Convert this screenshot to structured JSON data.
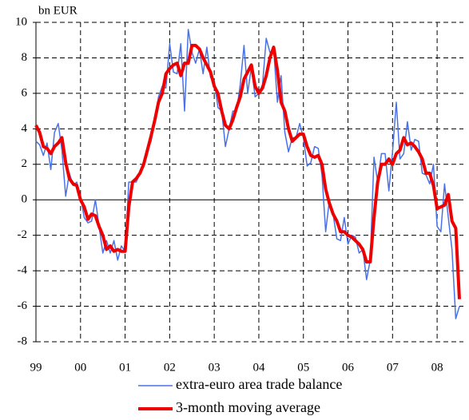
{
  "chart_data": {
    "type": "line",
    "y_axis_label": "bn EUR",
    "categories": [
      "99",
      null,
      null,
      null,
      null,
      null,
      null,
      null,
      null,
      null,
      null,
      null,
      "00",
      null,
      null,
      null,
      null,
      null,
      null,
      null,
      null,
      null,
      null,
      null,
      "01",
      null,
      null,
      null,
      null,
      null,
      null,
      null,
      null,
      null,
      null,
      null,
      "02",
      null,
      null,
      null,
      null,
      null,
      null,
      null,
      null,
      null,
      null,
      null,
      "03",
      null,
      null,
      null,
      null,
      null,
      null,
      null,
      null,
      null,
      null,
      null,
      "04",
      null,
      null,
      null,
      null,
      null,
      null,
      null,
      null,
      null,
      null,
      null,
      "05",
      null,
      null,
      null,
      null,
      null,
      null,
      null,
      null,
      null,
      null,
      null,
      "06",
      null,
      null,
      null,
      null,
      null,
      null,
      null,
      null,
      null,
      null,
      null,
      "07",
      null,
      null,
      null,
      null,
      null,
      null,
      null,
      null,
      null,
      null,
      null,
      "08",
      null,
      null,
      null,
      null,
      null,
      null
    ],
    "series": [
      {
        "name": "extra-euro area trade balance",
        "color": "#4a72e8",
        "width": 1.5,
        "values": [
          3.3,
          3.1,
          2.5,
          3.2,
          1.7,
          3.8,
          4.3,
          2.8,
          0.2,
          1.5,
          0.8,
          1.0,
          0.2,
          -1.0,
          -1.3,
          -1.2,
          0.0,
          -1.5,
          -3.0,
          -2.3,
          -3.0,
          -2.3,
          -3.4,
          -2.6,
          -2.9,
          1.0,
          1.0,
          1.0,
          1.5,
          2.0,
          2.8,
          3.3,
          4.5,
          5.8,
          6.4,
          6.3,
          8.8,
          7.2,
          7.1,
          8.8,
          5.0,
          9.6,
          8.3,
          7.7,
          8.5,
          7.1,
          8.6,
          6.9,
          6.7,
          5.2,
          5.0,
          3.0,
          4.0,
          5.0,
          5.0,
          6.5,
          8.7,
          6.0,
          7.5,
          5.8,
          6.0,
          6.5,
          9.1,
          8.3,
          8.5,
          5.5,
          7.0,
          3.8,
          2.7,
          3.5,
          3.5,
          4.3,
          3.5,
          1.9,
          2.1,
          3.0,
          2.9,
          1.4,
          -1.8,
          0.0,
          -0.8,
          -2.2,
          -2.3,
          -1.0,
          -2.5,
          -2.0,
          -2.1,
          -3.0,
          -2.8,
          -4.5,
          -3.4,
          2.4,
          1.0,
          2.6,
          2.6,
          0.5,
          2.7,
          5.5,
          2.3,
          2.6,
          4.4,
          2.8,
          3.4,
          3.3,
          1.5,
          1.4,
          0.9,
          2.0,
          -1.5,
          -1.8,
          0.9,
          -1.0,
          -2.8,
          -6.7,
          -6.0
        ]
      },
      {
        "name": "3-month moving average",
        "color": "#ee0000",
        "width": 4,
        "values": [
          4.2,
          3.8,
          3.0,
          2.9,
          2.6,
          3.0,
          3.2,
          3.5,
          2.1,
          1.2,
          0.9,
          0.8,
          0.0,
          -0.4,
          -1.1,
          -0.8,
          -0.9,
          -1.5,
          -2.0,
          -2.8,
          -2.6,
          -2.9,
          -2.8,
          -2.9,
          -2.9,
          -0.4,
          1.0,
          1.2,
          1.5,
          2.0,
          2.8,
          3.6,
          4.5,
          5.5,
          6.0,
          7.1,
          7.4,
          7.6,
          7.7,
          7.0,
          7.7,
          7.7,
          8.7,
          8.7,
          8.5,
          8.0,
          7.6,
          7.2,
          6.4,
          6.0,
          5.0,
          4.2,
          4.0,
          4.5,
          5.2,
          5.8,
          6.8,
          7.2,
          7.6,
          6.4,
          6.0,
          6.3,
          7.0,
          8.0,
          8.6,
          7.3,
          5.5,
          5.0,
          4.0,
          3.3,
          3.5,
          3.7,
          3.7,
          3.0,
          2.5,
          2.4,
          2.5,
          2.0,
          0.6,
          -0.2,
          -0.8,
          -1.2,
          -1.8,
          -1.8,
          -2.0,
          -2.1,
          -2.3,
          -2.5,
          -2.8,
          -3.5,
          -3.5,
          -1.0,
          1.0,
          2.0,
          2.0,
          2.3,
          2.0,
          2.6,
          2.8,
          3.5,
          3.1,
          3.2,
          3.0,
          2.7,
          2.3,
          1.5,
          1.5,
          0.8,
          -0.5,
          -0.4,
          -0.3,
          0.3,
          -1.2,
          -1.6,
          -5.6
        ]
      }
    ],
    "ylim": [
      -8,
      10
    ],
    "yticks": [
      -8,
      -6,
      -4,
      -2,
      0,
      2,
      4,
      6,
      8,
      10
    ],
    "grid": true
  }
}
